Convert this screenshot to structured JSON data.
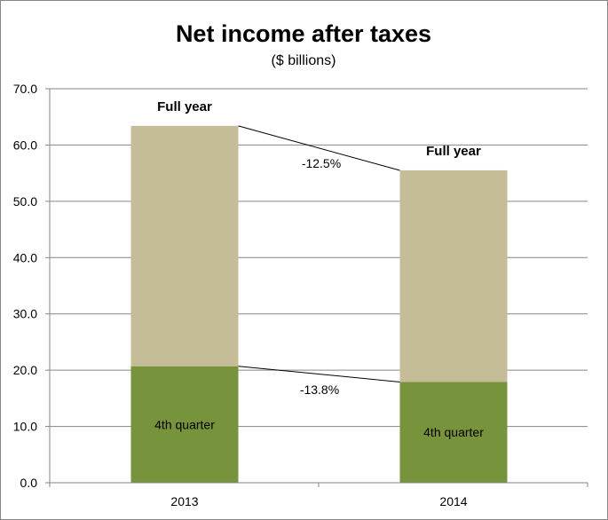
{
  "chart_data": {
    "type": "bar",
    "stacked": true,
    "title": "Net income after taxes",
    "subtitle": "($ billions)",
    "xlabel": "",
    "ylabel": "",
    "categories": [
      "2013",
      "2014"
    ],
    "ylim": [
      0,
      70
    ],
    "yticks": [
      "0.0",
      "10.0",
      "20.0",
      "30.0",
      "40.0",
      "50.0",
      "60.0",
      "70.0"
    ],
    "grid": true,
    "series": [
      {
        "name": "4th quarter",
        "values": [
          20.7,
          17.9
        ],
        "color": "#77933c"
      },
      {
        "name": "Full year",
        "values": [
          42.7,
          37.6
        ],
        "color": "#c4bd97"
      }
    ],
    "totals": [
      63.4,
      55.5
    ],
    "total_label": "Full year",
    "segment_label": "4th quarter",
    "changes": [
      {
        "label": "-12.5%",
        "series": "Full year"
      },
      {
        "label": "-13.8%",
        "series": "4th quarter"
      }
    ],
    "colors": {
      "grid": "#868686",
      "axis": "#868686",
      "connector": "#000000"
    }
  }
}
